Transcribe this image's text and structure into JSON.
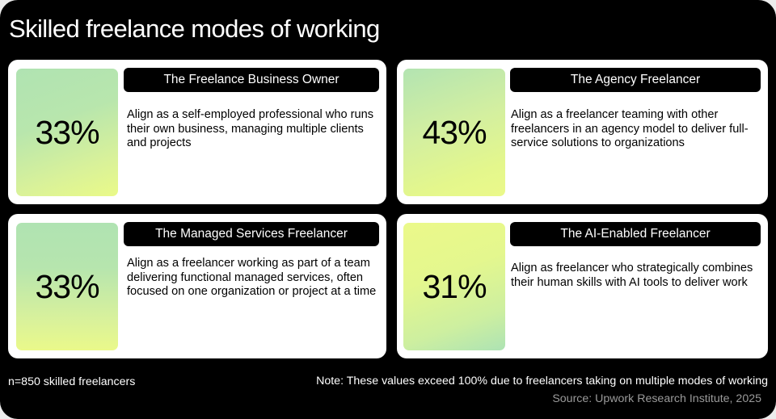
{
  "title": "Skilled freelance modes of working",
  "cards": [
    {
      "percent": "33%",
      "label": "The Freelance Business Owner",
      "description": "Align as a self-employed professional who runs their own business, managing multiple clients and projects"
    },
    {
      "percent": "43%",
      "label": "The Agency Freelancer",
      "description": "Align as a freelancer teaming with other freelancers in an agency model to deliver full-service solutions to organizations"
    },
    {
      "percent": "33%",
      "label": "The Managed Services Freelancer",
      "description": "Align as a freelancer working as part of a team delivering functional managed services, often focused on one organization or project at a time"
    },
    {
      "percent": "31%",
      "label": "The AI-Enabled Freelancer",
      "description": "Align as freelancer who strategically combines their human skills with AI tools to deliver work"
    }
  ],
  "footer": {
    "sample": "n=850 skilled freelancers",
    "note": "Note: These values exceed 100% due to freelancers taking on multiple modes of working",
    "source": "Source: Upwork Research Institute, 2025"
  },
  "colors": {
    "background": "#000000",
    "card": "#ffffff",
    "gradient_green": "#b0e3b2",
    "gradient_yellow": "#eafa88",
    "source_text": "#9a9a9a"
  }
}
